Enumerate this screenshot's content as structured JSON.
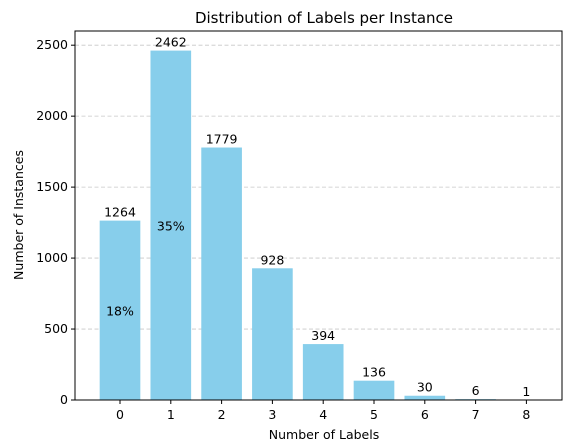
{
  "chart_data": {
    "type": "bar",
    "title": "Distribution of Labels per Instance",
    "xlabel": "Number of Labels",
    "ylabel": "Number of Instances",
    "categories": [
      "0",
      "1",
      "2",
      "3",
      "4",
      "5",
      "6",
      "7",
      "8"
    ],
    "values": [
      1264,
      2462,
      1779,
      928,
      394,
      136,
      30,
      6,
      1
    ],
    "value_labels": [
      "1264",
      "2462",
      "1779",
      "928",
      "394",
      "136",
      "30",
      "6",
      "1"
    ],
    "percent_labels": [
      {
        "category": "0",
        "text": "18%",
        "at_value": 632
      },
      {
        "category": "1",
        "text": "35%",
        "at_value": 1231
      }
    ],
    "ylim": [
      0,
      2600
    ],
    "yticks": [
      0,
      500,
      1000,
      1500,
      2000,
      2500
    ],
    "ytick_labels": [
      "0",
      "500",
      "1000",
      "1500",
      "2000",
      "2500"
    ],
    "grid": "y-dashed",
    "legend": "none",
    "bar_color": "#87ceeb",
    "grid_color": "#b0b0b0"
  }
}
